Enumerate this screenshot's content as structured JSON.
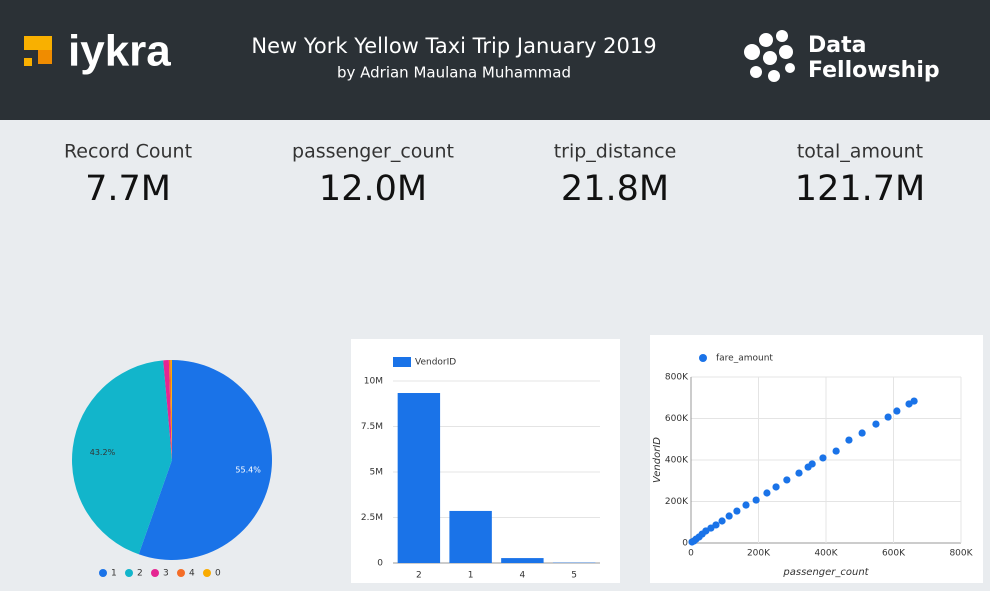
{
  "header": {
    "logo_left": "iykra",
    "title": "New York Yellow Taxi Trip January 2019",
    "subtitle": "by Adrian Maulana Muhammad",
    "logo_right": [
      "Data",
      "Fellowship"
    ]
  },
  "kpis": [
    {
      "label": "Record Count",
      "value": "7.7M"
    },
    {
      "label": "passenger_count",
      "value": "12.0M"
    },
    {
      "label": "trip_distance",
      "value": "21.8M"
    },
    {
      "label": "total_amount",
      "value": "121.7M"
    }
  ],
  "chart_data": [
    {
      "type": "pie",
      "categories": [
        "1",
        "2",
        "3",
        "4",
        "0"
      ],
      "values": [
        55.4,
        43.2,
        0.9,
        0.3,
        0.2
      ],
      "value_labels": [
        "55.4%",
        "43.2%",
        null,
        null,
        null
      ],
      "colors": [
        "#1a73e8",
        "#12b5cb",
        "#e52592",
        "#f46d27",
        "#f9ab00"
      ],
      "legend": "bottom"
    },
    {
      "type": "bar",
      "series": [
        {
          "name": "VendorID",
          "color": "#1a73e8",
          "values": [
            9340000,
            2860000,
            270000,
            20000
          ]
        }
      ],
      "categories": [
        "2",
        "1",
        "4",
        "5"
      ],
      "ylim": [
        0,
        10000000
      ],
      "yticks": [
        0,
        {
          "value": 2500000,
          "label": "2.5M"
        },
        {
          "value": 5000000,
          "label": "5M"
        },
        {
          "value": 7500000,
          "label": "7.5M"
        },
        {
          "value": 10000000,
          "label": "10M"
        }
      ],
      "grid": true,
      "legend": "top-left"
    },
    {
      "type": "scatter",
      "series": [
        {
          "name": "fare_amount",
          "color": "#1a73e8",
          "x": [
            661000,
            646000,
            610000,
            584000,
            548000,
            507000,
            468000,
            430000,
            391000,
            359000,
            347000,
            320000,
            284000,
            252000,
            225000,
            193000,
            163000,
            136000,
            113000,
            92000,
            74000,
            59000,
            44000,
            33000,
            24000,
            15000,
            9000,
            3000
          ],
          "values": [
            684000,
            670000,
            636000,
            607000,
            573000,
            530000,
            496000,
            443000,
            410000,
            381000,
            366000,
            337000,
            304000,
            270000,
            241000,
            207000,
            183000,
            154000,
            130000,
            106000,
            87000,
            72000,
            58000,
            43000,
            29000,
            19000,
            10000,
            5000
          ]
        }
      ],
      "xlabel": "passenger_count",
      "ylabel": "VendorID",
      "xlim": [
        0,
        800000
      ],
      "ylim": [
        0,
        800000
      ],
      "xticks": [
        0,
        {
          "value": 200000,
          "label": "200K"
        },
        {
          "value": 400000,
          "label": "400K"
        },
        {
          "value": 600000,
          "label": "600K"
        },
        {
          "value": 800000,
          "label": "800K"
        }
      ],
      "yticks": [
        0,
        {
          "value": 200000,
          "label": "200K"
        },
        {
          "value": 400000,
          "label": "400K"
        },
        {
          "value": 600000,
          "label": "600K"
        },
        {
          "value": 800000,
          "label": "800K"
        }
      ],
      "grid": true,
      "legend": "top-left"
    }
  ]
}
